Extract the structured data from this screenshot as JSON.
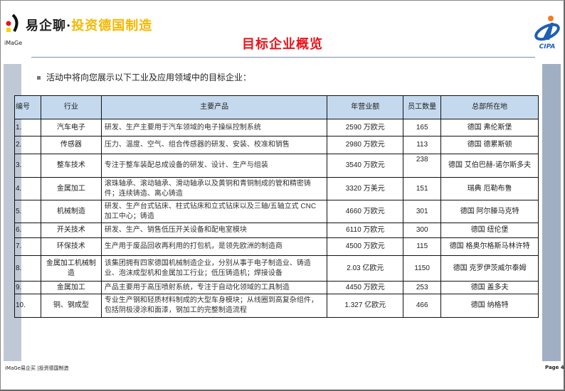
{
  "header": {
    "logo_text": "iMaGe",
    "brand_black": "易企聊·",
    "brand_yellow": "投资德国制造",
    "title": "目标企业概览",
    "right_logo_text": "CIPA"
  },
  "intro": "活动中将向您展示以下工业及应用领域中的目标企业：",
  "table": {
    "headers": [
      "编号",
      "行业",
      "主要产品",
      "年营业额",
      "员工数量",
      "总部所在地"
    ],
    "rows": [
      [
        "1.",
        "汽车电子",
        "研发、生产主要用于汽车领域的电子操纵控制系统",
        "2590 万欧元",
        "165",
        "德国  弗伦斯堡"
      ],
      [
        "2.",
        "传感器",
        "压力、温度、空气、组合传感器的研发、安装、校准和销售",
        "2980 万欧元",
        "113",
        "德国  德累斯顿"
      ],
      [
        "3.",
        "整车技术",
        "专注于整车装配总成设备的研发、设计、生产与组装",
        "3540 万欧元",
        "238",
        "德国  艾伯巴赫-诺尔斯多夫"
      ],
      [
        "4.",
        "金属加工",
        "滚珠轴承、滚动轴承、滑动轴承以及黄铜和青铜制成的管和精密铸件；连续铸造、离心铸造",
        "3320 万美元",
        "151",
        "瑞典  厄勒布鲁"
      ],
      [
        "5.",
        "机械制造",
        "研发、生产台式钻床、柱式钻床和立式钻床以及三轴/五轴立式 CNC 加工中心；铸造",
        "4660 万欧元",
        "301",
        "德国  阿尔滕马克特"
      ],
      [
        "6.",
        "开关技术",
        "研发、生产、销售低压开关设备和配电室模块",
        "6110 万欧元",
        "300",
        "德国  纽伦堡"
      ],
      [
        "7.",
        "环保技术",
        "生产用于废品回收再利用的打包机，是领先欧洲的制造商",
        "4500 万欧元",
        "115",
        "德国 格奥尔格斯马林许特"
      ],
      [
        "8.",
        "金属加工机械制造",
        "该集团拥有四家德国机械制造企业，分别从事于电子制造业、铸造业、泡沫成型机和金属加工行业；低压铸造机；焊接设备",
        "2.03 亿欧元",
        "1150",
        "德国  克罗伊茨威尔泰姆"
      ],
      [
        "9.",
        "金属加工",
        "产品主要用于高压喷射系统，专注于自动化领域的工具制造",
        "4450 万欧元",
        "253",
        "德国  盖多夫"
      ],
      [
        "10.",
        "铜、钢成型",
        "专业生产钢和轻质材料制成的大型车身模块；从线圈到高复杂组件，包括阴极浸涂和面漆，钢加工的完整制造流程",
        "1.327  亿欧元",
        "466",
        "德国  纳格特"
      ]
    ]
  },
  "footer": {
    "left": "iMaGe易企买 |投资德国制造",
    "page": "Page 4"
  },
  "colors": {
    "title": "#e8141b",
    "brand_yellow": "#f5b800",
    "header_fill": "#c5d9ee",
    "side_bar": "#a0afc3"
  }
}
